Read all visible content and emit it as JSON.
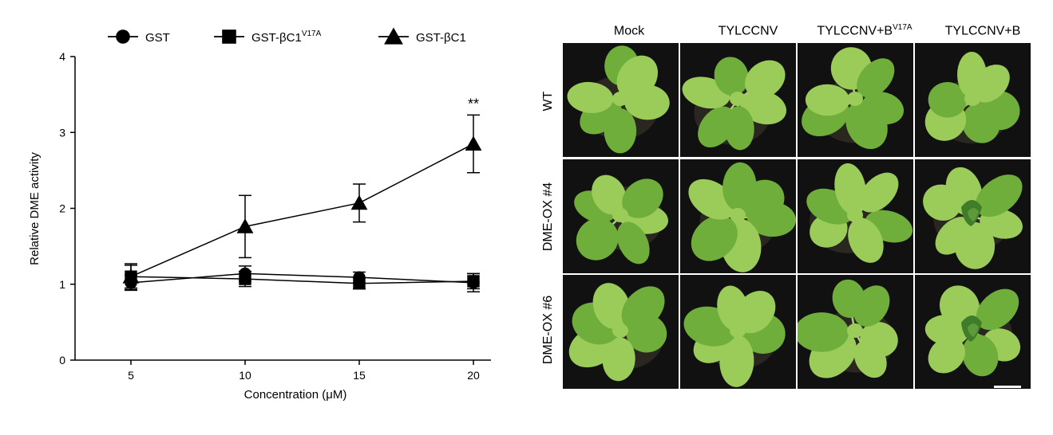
{
  "chart_data": {
    "type": "line",
    "x": [
      5,
      10,
      15,
      20
    ],
    "xticks": [
      "5",
      "10",
      "15",
      "20"
    ],
    "xlabel": "Concentration (μM)",
    "ylabel": "Relative DME activity",
    "ylim": [
      0,
      4
    ],
    "yticks": [
      "0",
      "1",
      "2",
      "3",
      "4"
    ],
    "grid": false,
    "legend_position": "top",
    "series": [
      {
        "name": "GST",
        "name_sup": "",
        "marker": "circle",
        "values": [
          1.02,
          1.14,
          1.09,
          1.02
        ],
        "errors": [
          0.1,
          0.1,
          0.07,
          0.12
        ]
      },
      {
        "name": "GST-βC1",
        "name_sup": "V17A",
        "marker": "square",
        "values": [
          1.1,
          1.07,
          1.01,
          1.04
        ],
        "errors": [
          0.17,
          0.1,
          0.07,
          0.1
        ]
      },
      {
        "name": "GST-βC1",
        "name_sup": "",
        "marker": "triangle",
        "values": [
          1.1,
          1.76,
          2.07,
          2.85
        ],
        "errors": [
          0.15,
          0.41,
          0.25,
          0.38
        ]
      }
    ],
    "annotations": [
      {
        "x": 20,
        "text": "**"
      }
    ]
  },
  "photo_panel": {
    "columns": [
      {
        "label": "Mock",
        "sup": ""
      },
      {
        "label": "TYLCCNV",
        "sup": ""
      },
      {
        "label": "TYLCCNV+B",
        "sup": "V17A"
      },
      {
        "label": "TYLCCNV+B",
        "sup": ""
      }
    ],
    "rows": [
      "WT",
      "DME-OX #4",
      "DME-OX #6"
    ],
    "scale_bar": true
  },
  "colors": {
    "line": "#000000",
    "leaf": "#6fae3a",
    "leaf_light": "#9bcc5a",
    "soil": "#2a2620",
    "background": "#ffffff"
  }
}
